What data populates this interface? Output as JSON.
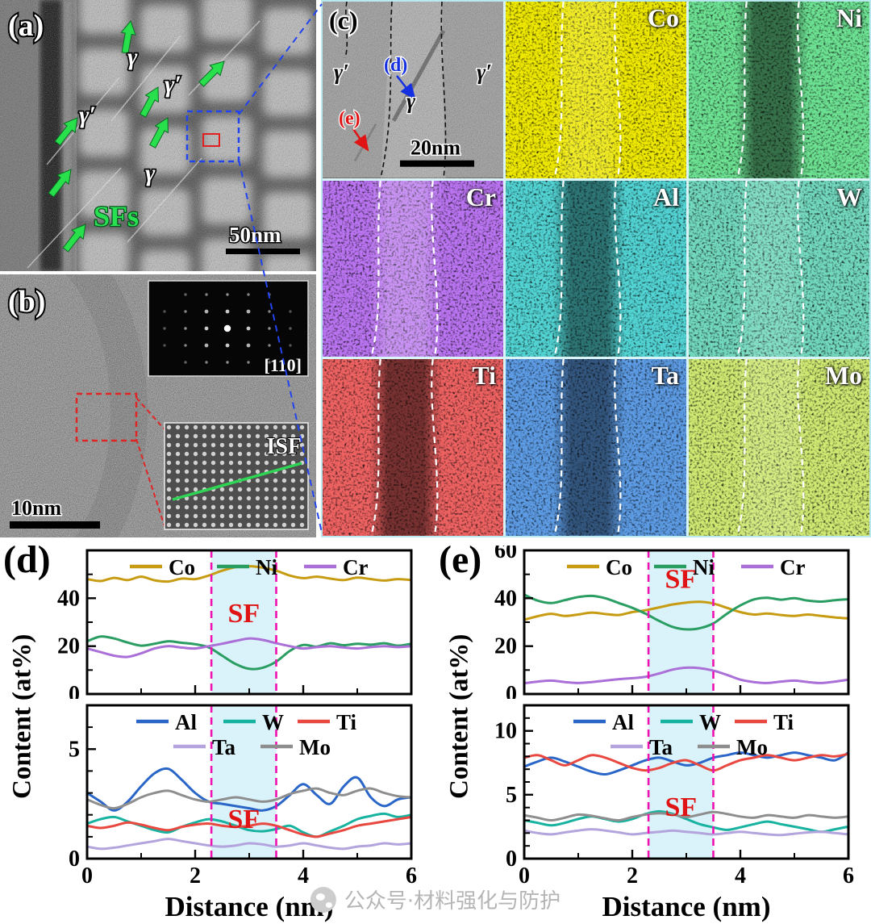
{
  "watermark": {
    "text": "公众号·材料强化与防护"
  },
  "panel_a": {
    "label": "(a)",
    "gamma_top": "γ",
    "gamma_prime_right": "γ′",
    "gamma_prime_left": "γ′",
    "gamma_bottom": "γ",
    "sfs_label": "SFs",
    "scale_bar": "50nm"
  },
  "panel_b": {
    "label": "(b)",
    "zone_axis": "[110]",
    "isf_label": "ISF",
    "scale_bar": "10nm"
  },
  "panel_c": {
    "label": "(c)",
    "gamma_prime_left": "γ′",
    "gamma": "γ",
    "gamma_prime_right": "γ′",
    "d_marker": "(d)",
    "e_marker": "(e)",
    "scale_bar": "20nm",
    "maps": [
      {
        "element": "Co",
        "color": "#ddd000",
        "band": "bright",
        "band_opacity": 0.15,
        "seed": 11
      },
      {
        "element": "Ni",
        "color": "#27c24a",
        "band": "dark",
        "band_opacity": 0.5,
        "seed": 12
      },
      {
        "element": "Cr",
        "color": "#7d2de0",
        "band": "bright",
        "band_opacity": 0.22,
        "seed": 13
      },
      {
        "element": "Al",
        "color": "#16a8a8",
        "band": "dark",
        "band_opacity": 0.45,
        "seed": 14
      },
      {
        "element": "W",
        "color": "#2bb184",
        "band": "bright",
        "band_opacity": 0.12,
        "seed": 15
      },
      {
        "element": "Ti",
        "color": "#dd1f1f",
        "band": "dark",
        "band_opacity": 0.5,
        "seed": 16
      },
      {
        "element": "Ta",
        "color": "#1c55c8",
        "band": "dark",
        "band_opacity": 0.45,
        "seed": 17
      },
      {
        "element": "Mo",
        "color": "#9fd02b",
        "band": "bright",
        "band_opacity": 0.12,
        "seed": 18
      }
    ]
  },
  "charts": {
    "d_label": "(d)",
    "e_label": "(e)",
    "ylabel": "Content (at%)",
    "xlabel": "Distance (nm)"
  },
  "chart_data": [
    {
      "key": "d_top",
      "type": "line",
      "panel": "(d)",
      "xlim": [
        0,
        6
      ],
      "ylim": [
        0,
        60
      ],
      "yticks": [
        0,
        20,
        40
      ],
      "yminor": [
        10,
        30,
        50
      ],
      "xticks": [
        0,
        2,
        4,
        6
      ],
      "xminor": [
        1,
        3,
        5
      ],
      "x_labels": false,
      "sf": [
        2.3,
        3.5
      ],
      "sf_label": "SF",
      "sf_label_frac": 0.5,
      "legend_rows": [
        [
          "Co",
          "Ni",
          "Cr"
        ]
      ],
      "series": [
        {
          "name": "Co",
          "color": "#c79c12",
          "values": [
            48,
            47.2,
            48.5,
            47.6,
            49,
            47.5,
            47,
            48.2,
            48,
            49.5,
            51.5,
            53,
            53.4,
            52.8,
            51.5,
            49.5,
            48.4,
            49,
            48.2,
            47.6,
            48.6,
            48,
            47.4,
            48,
            47.6
          ]
        },
        {
          "name": "Ni",
          "color": "#2a9d62",
          "values": [
            22,
            24,
            23.2,
            21.5,
            20.2,
            21,
            22,
            21.4,
            20.8,
            19.5,
            16,
            12.5,
            10.5,
            11,
            13.5,
            18,
            20.5,
            19.8,
            21.2,
            20.4,
            21,
            20.6,
            21.2,
            20.2,
            21
          ]
        },
        {
          "name": "Cr",
          "color": "#ab6fd8",
          "values": [
            19,
            17.5,
            16,
            15.5,
            17,
            19,
            20,
            19.4,
            19,
            20,
            21,
            22.2,
            23.2,
            22.6,
            21.2,
            20,
            19,
            19.6,
            20,
            19.4,
            19,
            19.6,
            20,
            19.6,
            20
          ]
        }
      ]
    },
    {
      "key": "d_bottom",
      "type": "line",
      "panel": "(d)",
      "xlim": [
        0,
        6
      ],
      "ylim": [
        0,
        7
      ],
      "yticks": [
        0,
        5
      ],
      "yminor": [
        1,
        2,
        3,
        4,
        6
      ],
      "xticks": [
        0,
        2,
        4,
        6
      ],
      "xminor": [
        1,
        3,
        5
      ],
      "x_labels": true,
      "sf": [
        2.3,
        3.5
      ],
      "sf_label": "SF",
      "sf_label_frac": 0.8,
      "legend_rows": [
        [
          "Al",
          "W",
          "Ti"
        ],
        [
          "Ta",
          "Mo"
        ]
      ],
      "series": [
        {
          "name": "Al",
          "color": "#2a66c8",
          "values": [
            3.0,
            2.6,
            2.2,
            2.6,
            3.3,
            3.9,
            4.1,
            3.6,
            3.0,
            2.6,
            2.5,
            2.4,
            2.3,
            2.2,
            2.4,
            2.9,
            3.4,
            2.9,
            2.5,
            3.3,
            3.7,
            2.8,
            2.4,
            2.7,
            2.8
          ]
        },
        {
          "name": "W",
          "color": "#17b3a0",
          "values": [
            1.6,
            1.8,
            1.9,
            1.7,
            1.5,
            1.3,
            1.2,
            1.45,
            1.65,
            1.8,
            1.7,
            1.5,
            1.3,
            1.25,
            1.35,
            1.5,
            1.2,
            1.0,
            1.25,
            1.5,
            1.8,
            1.95,
            2.05,
            1.9,
            2.0
          ]
        },
        {
          "name": "Ti",
          "color": "#e8483f",
          "values": [
            1.5,
            1.4,
            1.5,
            1.65,
            1.55,
            1.4,
            1.3,
            1.45,
            1.55,
            1.6,
            1.5,
            1.45,
            1.5,
            1.6,
            1.5,
            1.3,
            1.1,
            1.0,
            1.15,
            1.3,
            1.5,
            1.6,
            1.7,
            1.8,
            1.9
          ]
        },
        {
          "name": "Ta",
          "color": "#b4a4dd",
          "values": [
            0.55,
            0.45,
            0.5,
            0.6,
            0.7,
            0.8,
            0.9,
            0.8,
            0.7,
            0.6,
            0.55,
            0.6,
            0.7,
            0.65,
            0.55,
            0.6,
            0.7,
            0.6,
            0.5,
            0.45,
            0.55,
            0.6,
            0.7,
            0.65,
            0.7
          ]
        },
        {
          "name": "Mo",
          "color": "#8e8e8e",
          "values": [
            2.7,
            2.45,
            2.3,
            2.5,
            2.8,
            3.0,
            3.1,
            2.9,
            2.7,
            2.6,
            2.7,
            2.8,
            2.7,
            2.6,
            2.7,
            2.95,
            3.1,
            3.2,
            3.0,
            2.9,
            3.1,
            3.2,
            3.0,
            2.85,
            2.8
          ]
        }
      ]
    },
    {
      "key": "e_top",
      "type": "line",
      "panel": "(e)",
      "xlim": [
        0,
        6
      ],
      "ylim": [
        0,
        60
      ],
      "yticks": [
        0,
        20,
        40,
        60
      ],
      "yminor": [
        10,
        30,
        50
      ],
      "xticks": [
        0,
        2,
        4,
        6
      ],
      "xminor": [
        1,
        3,
        5
      ],
      "x_labels": false,
      "sf": [
        2.3,
        3.5
      ],
      "sf_label": "SF",
      "sf_label_frac": 0.26,
      "legend_rows": [
        [
          "Co",
          "Ni",
          "Cr"
        ]
      ],
      "series": [
        {
          "name": "Co",
          "color": "#c79c12",
          "values": [
            31,
            32.5,
            33.5,
            32.6,
            33.2,
            34,
            33.4,
            33,
            34.2,
            35,
            36.2,
            37.4,
            38.2,
            38.5,
            37.8,
            36,
            34.2,
            33.2,
            33.6,
            33,
            32.6,
            33.2,
            32.6,
            32,
            31.6
          ]
        },
        {
          "name": "Ni",
          "color": "#2a9d62",
          "values": [
            41.5,
            39,
            38,
            39.2,
            40.5,
            41,
            40,
            38,
            36,
            33.5,
            30.5,
            28,
            27,
            27.5,
            29.5,
            33.5,
            37,
            39.5,
            40.2,
            39.4,
            40,
            39,
            38.6,
            39.2,
            39.6
          ]
        },
        {
          "name": "Cr",
          "color": "#ab6fd8",
          "values": [
            4.5,
            5.2,
            5.6,
            5,
            4.6,
            5,
            5.6,
            6.2,
            6.6,
            7.2,
            8.6,
            10.2,
            11,
            10.8,
            9.8,
            8,
            6,
            5,
            4.6,
            5.2,
            5.6,
            5,
            4.6,
            5.2,
            6
          ]
        }
      ]
    },
    {
      "key": "e_bottom",
      "type": "line",
      "panel": "(e)",
      "xlim": [
        0,
        6
      ],
      "ylim": [
        0,
        12
      ],
      "yticks": [
        0,
        5,
        10
      ],
      "yminor": [
        1,
        2,
        3,
        4,
        6,
        7,
        8,
        9,
        11
      ],
      "xticks": [
        0,
        2,
        4,
        6
      ],
      "xminor": [
        1,
        3,
        5
      ],
      "x_labels": true,
      "sf": [
        2.3,
        3.5
      ],
      "sf_label": "SF",
      "sf_label_frac": 0.72,
      "legend_rows": [
        [
          "Al",
          "W",
          "Ti"
        ],
        [
          "Ta",
          "Mo"
        ]
      ],
      "series": [
        {
          "name": "Al",
          "color": "#2a66c8",
          "values": [
            7.2,
            7.6,
            7.9,
            7.6,
            7.2,
            6.8,
            6.6,
            6.9,
            7.3,
            7.7,
            7.9,
            7.6,
            7.3,
            7.5,
            7.9,
            8.1,
            8.3,
            8.1,
            7.9,
            8.1,
            8.3,
            8.1,
            7.9,
            7.7,
            8.3
          ]
        },
        {
          "name": "W",
          "color": "#17b3a0",
          "values": [
            3.0,
            2.8,
            2.6,
            2.8,
            3.1,
            3.3,
            3.1,
            2.9,
            3.1,
            3.5,
            3.7,
            3.5,
            3.1,
            2.7,
            2.45,
            2.25,
            2.45,
            2.7,
            2.9,
            2.7,
            2.5,
            2.3,
            2.1,
            2.3,
            2.5
          ]
        },
        {
          "name": "Ti",
          "color": "#e8483f",
          "values": [
            7.9,
            8.1,
            7.7,
            7.3,
            7.7,
            8.1,
            7.9,
            7.5,
            7.1,
            6.9,
            7.1,
            7.5,
            7.7,
            7.3,
            6.9,
            7.3,
            7.7,
            7.9,
            8.1,
            7.9,
            7.7,
            7.9,
            8.1,
            8.0,
            8.2
          ]
        },
        {
          "name": "Ta",
          "color": "#b4a4dd",
          "values": [
            2.2,
            2.0,
            1.9,
            2.05,
            2.2,
            2.3,
            2.2,
            2.05,
            1.9,
            2.0,
            2.1,
            2.2,
            2.1,
            2.0,
            1.9,
            2.0,
            2.1,
            2.0,
            1.9,
            1.85,
            1.95,
            2.05,
            2.1,
            2.0,
            1.9
          ]
        },
        {
          "name": "Mo",
          "color": "#8e8e8e",
          "values": [
            3.4,
            3.2,
            3.0,
            3.2,
            3.45,
            3.35,
            3.15,
            3.0,
            3.25,
            3.45,
            3.55,
            3.45,
            3.25,
            3.45,
            3.65,
            3.5,
            3.3,
            3.2,
            3.4,
            3.3,
            3.2,
            3.4,
            3.3,
            3.2,
            3.3
          ]
        }
      ]
    }
  ]
}
